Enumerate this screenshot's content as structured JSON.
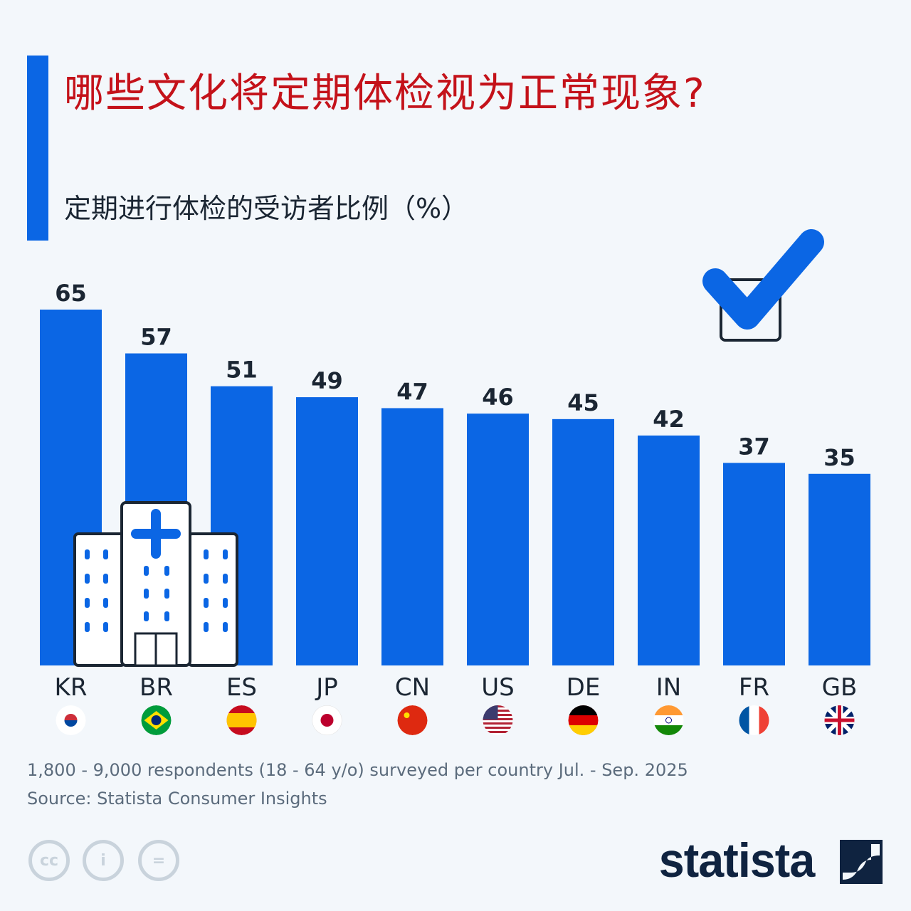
{
  "title": "哪些文化将定期体检视为正常现象?",
  "subtitle": "定期进行体检的受访者比例（%）",
  "colors": {
    "bar": "#0b66e4",
    "title": "#c4121a",
    "label": "#1b2633"
  },
  "chart_data": {
    "type": "bar",
    "categories": [
      "KR",
      "BR",
      "ES",
      "JP",
      "CN",
      "US",
      "DE",
      "IN",
      "FR",
      "GB"
    ],
    "values": [
      65,
      57,
      51,
      49,
      47,
      46,
      45,
      42,
      37,
      35
    ],
    "ylabel": "定期进行体检的受访者比例（%）",
    "ylim": [
      0,
      65
    ],
    "grid": false,
    "data_labels": true
  },
  "flags": [
    "south-korea-flag",
    "brazil-flag",
    "spain-flag",
    "japan-flag",
    "china-flag",
    "usa-flag",
    "germany-flag",
    "india-flag",
    "france-flag",
    "uk-flag"
  ],
  "footer": {
    "note": "1,800 - 9,000 respondents (18 - 64 y/o) surveyed per country Jul. - Sep. 2025",
    "source": "Source: Statista Consumer Insights",
    "license_icons": [
      "cc",
      "i",
      "="
    ],
    "logo": "statista"
  }
}
